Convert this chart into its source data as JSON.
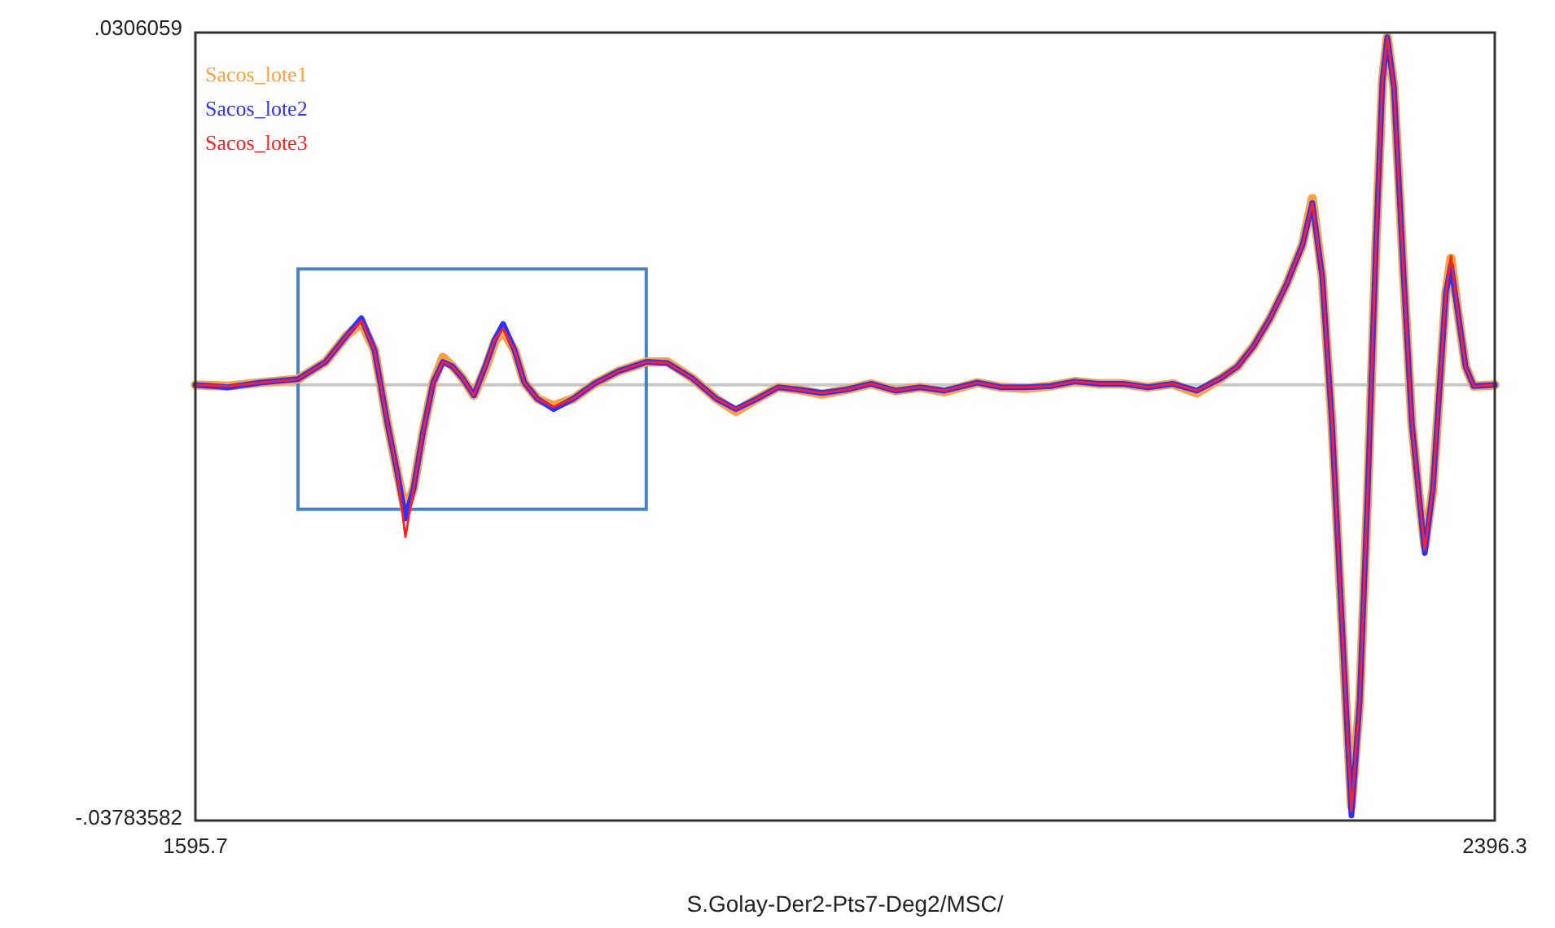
{
  "chart_data": {
    "type": "line",
    "xlabel": "S.Golay-Der2-Pts7-Deg2/MSC/",
    "x": [
      1595.7,
      1615.8,
      1635.8,
      1658.9,
      1675.9,
      1689.0,
      1698.0,
      1706.1,
      1714.1,
      1720.1,
      1725.1,
      1730.1,
      1736.1,
      1742.2,
      1748.2,
      1754.2,
      1760.2,
      1767.3,
      1774.3,
      1780.3,
      1785.3,
      1792.4,
      1798.4,
      1806.4,
      1816.4,
      1828.5,
      1841.5,
      1856.5,
      1873.6,
      1886.6,
      1901.7,
      1916.7,
      1928.7,
      1941.8,
      1954.8,
      1966.9,
      1981.9,
      1997.0,
      2012.0,
      2027.1,
      2042.2,
      2057.2,
      2077.3,
      2092.3,
      2107.4,
      2122.4,
      2137.5,
      2152.5,
      2167.6,
      2182.6,
      2197.7,
      2212.7,
      2227.8,
      2237.8,
      2247.8,
      2257.9,
      2267.9,
      2277.9,
      2283.9,
      2290.0,
      2296.0,
      2301.0,
      2305.0,
      2308.0,
      2313.1,
      2318.1,
      2323.1,
      2327.1,
      2330.1,
      2334.2,
      2340.2,
      2345.2,
      2350.2,
      2353.2,
      2358.2,
      2362.2,
      2366.2,
      2369.3,
      2373.3,
      2378.3,
      2383.3,
      2396.3
    ],
    "series": [
      {
        "name": "Sacos_lote1",
        "color": "#ffa040",
        "values": [
          0,
          -0.0001,
          0.0002,
          0.0005,
          0.002,
          0.0043,
          0.0054,
          0.003,
          -0.0034,
          -0.0076,
          -0.011,
          -0.009,
          -0.004,
          0.0002,
          0.0024,
          0.0016,
          0.0006,
          -0.0009,
          0.0014,
          0.0038,
          0.0047,
          0.003,
          0.0002,
          -0.0012,
          -0.0018,
          -0.0012,
          0.0001,
          0.0012,
          0.002,
          0.002,
          0.0006,
          -0.0012,
          -0.0023,
          -0.0012,
          -0.0002,
          -0.0004,
          -0.0008,
          -0.0004,
          0.0001,
          -0.0005,
          -0.0002,
          -0.0006,
          0.0002,
          -0.0002,
          -0.0003,
          -0.0001,
          0.0003,
          0.0001,
          0.0001,
          -0.0002,
          0.0001,
          -0.0007,
          0.0006,
          0.0016,
          0.0034,
          0.0058,
          0.0087,
          0.0122,
          0.0162,
          0.0094,
          -0.0033,
          -0.0175,
          -0.0288,
          -0.0366,
          -0.0274,
          -0.009,
          0.0122,
          0.0264,
          0.0302,
          0.0258,
          0.0094,
          -0.0033,
          -0.0104,
          -0.014,
          -0.009,
          -0.0005,
          0.008,
          0.011,
          0.0066,
          0.0016,
          -0.0001,
          0
        ]
      },
      {
        "name": "Sacos_lote2",
        "color": "#3030ff",
        "values": [
          0,
          -0.0002,
          0.0002,
          0.0005,
          0.002,
          0.0043,
          0.0058,
          0.003,
          -0.0034,
          -0.0076,
          -0.0116,
          -0.009,
          -0.004,
          0.0002,
          0.002,
          0.0016,
          0.0006,
          -0.0009,
          0.0016,
          0.004,
          0.0053,
          0.003,
          0.0002,
          -0.0012,
          -0.0021,
          -0.0012,
          0.0001,
          0.0012,
          0.002,
          0.0019,
          0.0006,
          -0.0012,
          -0.0021,
          -0.0012,
          -0.0002,
          -0.0004,
          -0.0007,
          -0.0004,
          0.0001,
          -0.0005,
          -0.0002,
          -0.0005,
          0.0002,
          -0.0002,
          -0.0002,
          -0.0001,
          0.0003,
          0.0001,
          0.0001,
          -0.0002,
          0.0001,
          -0.0005,
          0.0006,
          0.0016,
          0.0034,
          0.0058,
          0.0087,
          0.0122,
          0.0158,
          0.0094,
          -0.0033,
          -0.0175,
          -0.0288,
          -0.0374,
          -0.0274,
          -0.009,
          0.0122,
          0.0264,
          0.0302,
          0.0258,
          0.0094,
          -0.0033,
          -0.0104,
          -0.0146,
          -0.009,
          -0.0005,
          0.008,
          0.0104,
          0.0066,
          0.0016,
          -0.0001,
          0
        ]
      },
      {
        "name": "Sacos_lote3",
        "color": "#ff2020",
        "values": [
          0,
          -0.0001,
          0.0002,
          0.0005,
          0.002,
          0.0043,
          0.0056,
          0.003,
          -0.0034,
          -0.0076,
          -0.0132,
          -0.009,
          -0.004,
          0.0002,
          0.002,
          0.0016,
          0.0006,
          -0.0009,
          0.0016,
          0.004,
          0.0049,
          0.003,
          0.0002,
          -0.0012,
          -0.0019,
          -0.0012,
          0.0001,
          0.0012,
          0.002,
          0.0019,
          0.0006,
          -0.0012,
          -0.0021,
          -0.0012,
          -0.0002,
          -0.0004,
          -0.0007,
          -0.0004,
          0.0001,
          -0.0005,
          -0.0002,
          -0.0005,
          0.0002,
          -0.0002,
          -0.0002,
          -0.0001,
          0.0003,
          0.0001,
          0.0001,
          -0.0002,
          0.0001,
          -0.0005,
          0.0006,
          0.0016,
          0.0034,
          0.0058,
          0.0087,
          0.0122,
          0.0158,
          0.0094,
          -0.0033,
          -0.0175,
          -0.0288,
          -0.037,
          -0.0274,
          -0.009,
          0.0122,
          0.0264,
          0.0302,
          0.0258,
          0.0094,
          -0.0033,
          -0.0104,
          -0.0143,
          -0.009,
          -0.0005,
          0.008,
          0.0112,
          0.0066,
          0.0016,
          -0.0001,
          0
        ]
      }
    ],
    "xlim": [
      1595.7,
      2396.3
    ],
    "ylim": [
      -0.03783582,
      0.0306059
    ],
    "xticks": [
      1595.7,
      2396.3
    ],
    "yticks": [
      {
        "value": -0.03783582,
        "label": "-.03783582"
      },
      {
        "value": 0.0306059,
        "label": ".0306059"
      }
    ],
    "ref_lines": [
      {
        "axis": "y",
        "value": 0,
        "color": "#c8c8c8"
      }
    ],
    "legend": "top left",
    "line_style": "solid",
    "marker": "none"
  }
}
